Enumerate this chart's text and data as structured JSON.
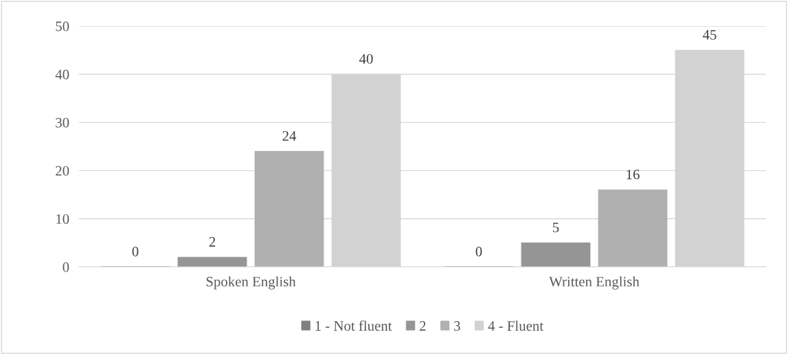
{
  "chart_data": {
    "type": "bar",
    "categories": [
      "Spoken English",
      "Written English"
    ],
    "series": [
      {
        "name": "1 - Not fluent",
        "color": "#7f7f7f",
        "values": [
          0,
          0
        ]
      },
      {
        "name": "2",
        "color": "#959595",
        "values": [
          2,
          5
        ]
      },
      {
        "name": "3",
        "color": "#b0b0b0",
        "values": [
          24,
          16
        ]
      },
      {
        "name": "4 - Fluent",
        "color": "#d2d2d2",
        "values": [
          40,
          45
        ]
      }
    ],
    "ylim": [
      0,
      50
    ],
    "yticks": [
      0,
      10,
      20,
      30,
      40,
      50
    ],
    "grid": "y",
    "legend": "bottom",
    "data_labels": true
  }
}
